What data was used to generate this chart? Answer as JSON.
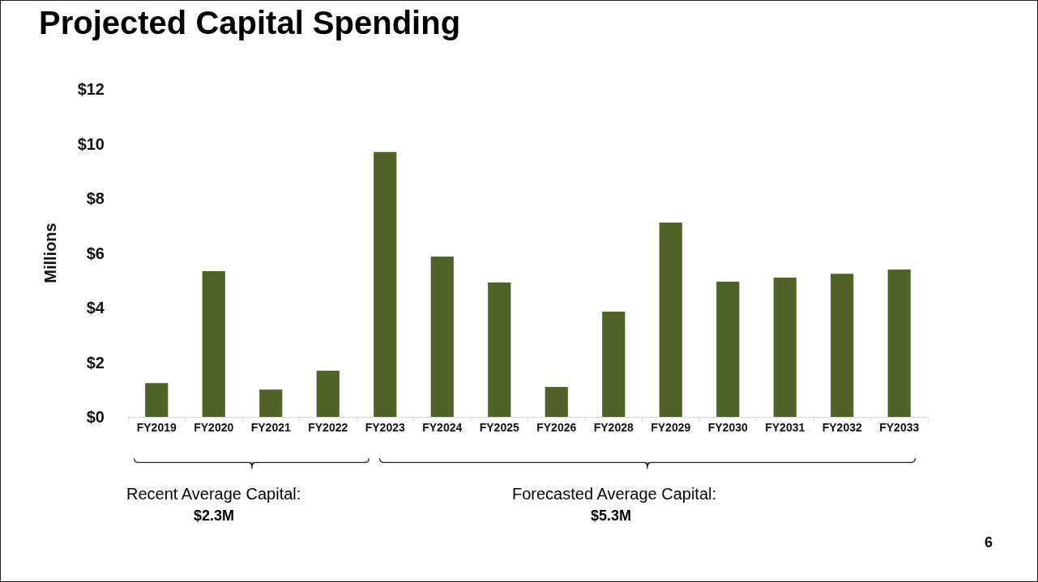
{
  "chart_data": {
    "type": "bar",
    "title": "Projected Capital Spending",
    "ylabel": "Millions",
    "categories": [
      "FY2019",
      "FY2020",
      "FY2021",
      "FY2022",
      "FY2023",
      "FY2024",
      "FY2025",
      "FY2026",
      "FY2028",
      "FY2029",
      "FY2030",
      "FY2031",
      "FY2032",
      "FY2033"
    ],
    "values": [
      1.24,
      5.33,
      1.0,
      1.69,
      9.7,
      5.87,
      4.92,
      1.1,
      3.85,
      7.11,
      4.95,
      5.1,
      5.24,
      5.39
    ],
    "color": "#4f6228",
    "ylim": [
      0,
      12
    ],
    "yticks": [
      {
        "value": 0,
        "label": "$0"
      },
      {
        "value": 2,
        "label": "$2"
      },
      {
        "value": 4,
        "label": "$4"
      },
      {
        "value": 6,
        "label": "$6"
      },
      {
        "value": 8,
        "label": "$8"
      },
      {
        "value": 10,
        "label": "$10"
      },
      {
        "value": 12,
        "label": "$12"
      }
    ],
    "grid": false,
    "annotations": [
      "Recent Average Capital:",
      "$2.3M",
      "Forecasted Average Capital:",
      "$5.3M",
      "6"
    ]
  }
}
